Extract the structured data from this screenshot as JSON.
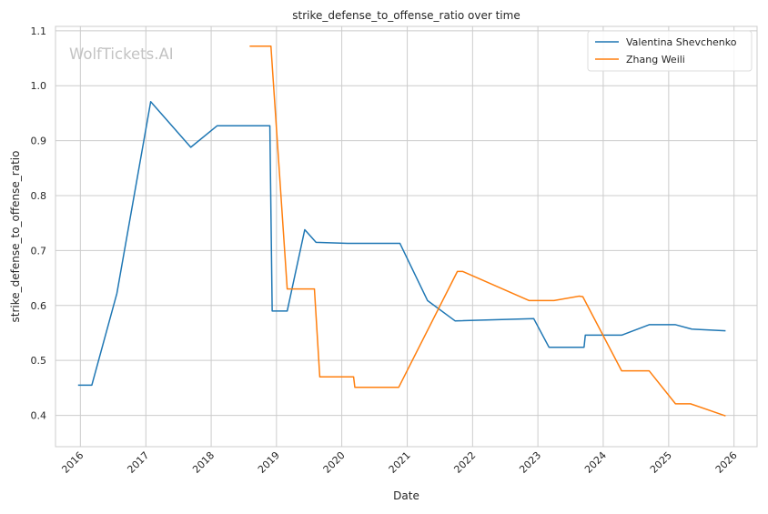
{
  "chart_data": {
    "type": "line",
    "title": "strike_defense_to_offense_ratio over time",
    "xlabel": "Date",
    "ylabel": "strike_defense_to_offense_ratio",
    "watermark": "WolfTickets.AI",
    "x_ticks": [
      "2016",
      "2017",
      "2018",
      "2019",
      "2020",
      "2021",
      "2022",
      "2023",
      "2024",
      "2025",
      "2026"
    ],
    "y_ticks": [
      "0.4",
      "0.5",
      "0.6",
      "0.7",
      "0.8",
      "0.9",
      "1.0",
      "1.1"
    ],
    "xlim": [
      "2015-08-15",
      "2026-05-10"
    ],
    "ylim": [
      0.343,
      1.108
    ],
    "grid": true,
    "legend": "top-right",
    "series": [
      {
        "name": "Valentina Shevchenko",
        "color": "#1f77b4",
        "x": [
          "2015-12-19",
          "2016-03-05",
          "2016-07-23",
          "2017-01-28",
          "2017-09-09",
          "2018-02-03",
          "2018-11-25",
          "2018-12-08",
          "2019-03-02",
          "2019-06-08",
          "2019-08-10",
          "2020-02-08",
          "2020-11-21",
          "2021-04-24",
          "2021-09-25",
          "2022-12-09",
          "2023-03-04",
          "2023-09-16",
          "2023-09-23",
          "2024-04-13",
          "2024-09-14",
          "2025-02-08",
          "2025-05-10",
          "2025-11-15"
        ],
        "y": [
          0.455,
          0.455,
          0.622,
          0.971,
          0.888,
          0.927,
          0.927,
          0.59,
          0.59,
          0.738,
          0.715,
          0.713,
          0.713,
          0.609,
          0.572,
          0.576,
          0.524,
          0.524,
          0.546,
          0.546,
          0.565,
          0.565,
          0.557,
          0.554
        ]
      },
      {
        "name": "Zhang Weili",
        "color": "#ff7f0e",
        "x": [
          "2018-08-04",
          "2018-12-01",
          "2019-03-02",
          "2019-08-01",
          "2019-08-31",
          "2020-03-07",
          "2020-03-14",
          "2020-11-14",
          "2021-10-08",
          "2021-11-06",
          "2022-11-12",
          "2023-04-01",
          "2023-08-19",
          "2023-09-09",
          "2024-04-13",
          "2024-09-14",
          "2025-02-08",
          "2025-05-03",
          "2025-11-15"
        ],
        "y": [
          1.072,
          1.072,
          0.63,
          0.63,
          0.47,
          0.47,
          0.451,
          0.451,
          0.662,
          0.662,
          0.609,
          0.609,
          0.617,
          0.616,
          0.481,
          0.481,
          0.421,
          0.421,
          0.399
        ]
      }
    ]
  }
}
